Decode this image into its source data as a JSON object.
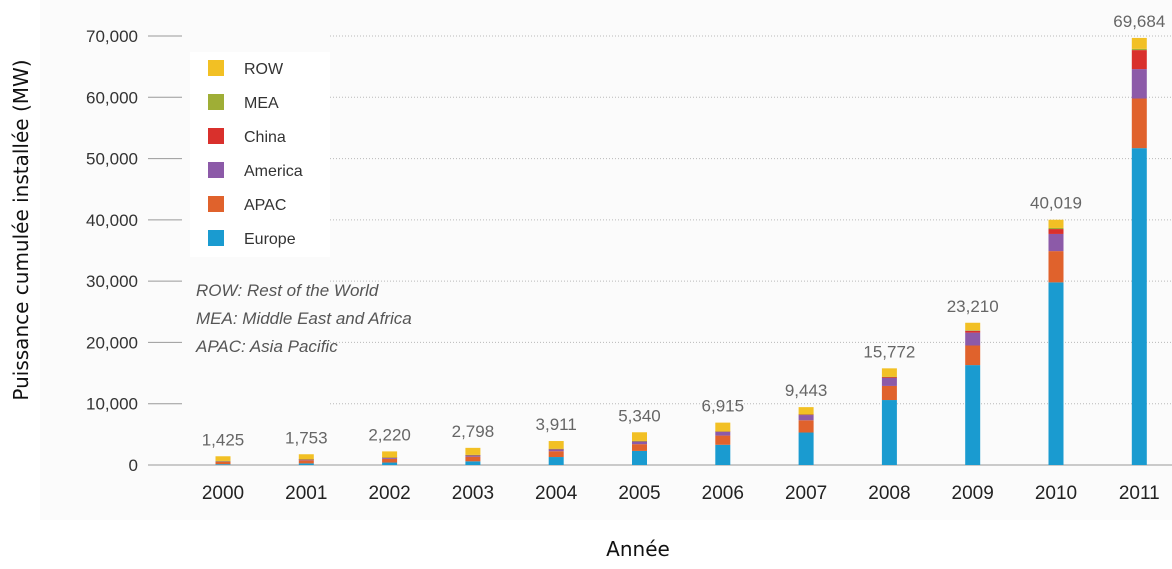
{
  "chart_data": {
    "type": "bar",
    "stacked": true,
    "title": "",
    "xlabel": "Année",
    "ylabel": "Puissance cumulée installée  (MW)",
    "ylim": [
      0,
      70000
    ],
    "yticks": [
      0,
      10000,
      20000,
      30000,
      40000,
      50000,
      60000,
      70000
    ],
    "ytick_labels": [
      "0",
      "10,000",
      "20,000",
      "30,000",
      "40,000",
      "50,000",
      "60,000",
      "70,000"
    ],
    "grid": true,
    "legend_position": "top-left",
    "categories": [
      "2000",
      "2001",
      "2002",
      "2003",
      "2004",
      "2005",
      "2006",
      "2007",
      "2008",
      "2009",
      "2010",
      "2011"
    ],
    "totals": [
      1425,
      1753,
      2220,
      2798,
      3911,
      5340,
      6915,
      9443,
      15772,
      23210,
      40019,
      69684
    ],
    "total_labels": [
      "1,425",
      "1,753",
      "2,220",
      "2,798",
      "3,911",
      "5,340",
      "6,915",
      "9,443",
      "15,772",
      "23,210",
      "40,019",
      "69,684"
    ],
    "series": [
      {
        "name": "Europe",
        "color": "#1a9bd0",
        "values": [
          130,
          260,
          400,
          600,
          1300,
          2300,
          3300,
          5300,
          10600,
          16300,
          29800,
          51700
        ]
      },
      {
        "name": "APAC",
        "color": "#e0622c",
        "values": [
          400,
          500,
          600,
          750,
          950,
          1100,
          1500,
          2000,
          2300,
          3200,
          5100,
          8100
        ]
      },
      {
        "name": "America",
        "color": "#8c5aa8",
        "values": [
          110,
          150,
          210,
          250,
          320,
          430,
          600,
          850,
          1300,
          2100,
          2800,
          4800
        ]
      },
      {
        "name": "China",
        "color": "#d9302c",
        "values": [
          20,
          25,
          30,
          40,
          60,
          70,
          80,
          100,
          150,
          300,
          800,
          3100
        ]
      },
      {
        "name": "MEA",
        "color": "#9fae36",
        "values": [
          10,
          12,
          15,
          18,
          21,
          25,
          35,
          45,
          60,
          100,
          180,
          200
        ]
      },
      {
        "name": "ROW",
        "color": "#f2c024",
        "values": [
          755,
          806,
          965,
          1140,
          1260,
          1415,
          1400,
          1148,
          1362,
          1210,
          1339,
          1784
        ]
      }
    ],
    "legend_order": [
      "ROW",
      "MEA",
      "China",
      "America",
      "APAC",
      "Europe"
    ],
    "notes": [
      "ROW: Rest of the World",
      "MEA: Middle East and Africa",
      "APAC: Asia Pacific"
    ]
  }
}
